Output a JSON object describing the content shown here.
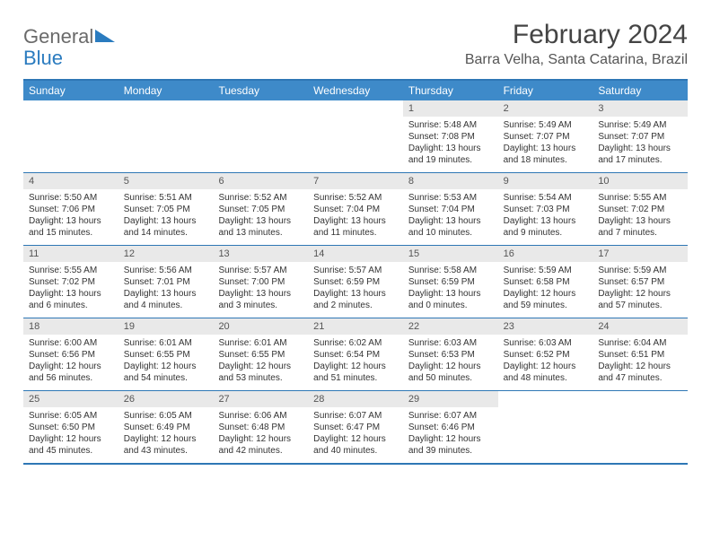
{
  "logo": {
    "text1": "General",
    "text2": "Blue"
  },
  "title": "February 2024",
  "location": "Barra Velha, Santa Catarina, Brazil",
  "colors": {
    "header_bg": "#3e8ac9",
    "header_text": "#ffffff",
    "rule": "#2e77b5",
    "daynum_bg": "#e9e9e9",
    "text": "#333333",
    "logo_gray": "#6a6a6a",
    "logo_blue": "#2a7bbf"
  },
  "day_names": [
    "Sunday",
    "Monday",
    "Tuesday",
    "Wednesday",
    "Thursday",
    "Friday",
    "Saturday"
  ],
  "weeks": [
    [
      {
        "n": "",
        "sr": "",
        "ss": "",
        "dl": ""
      },
      {
        "n": "",
        "sr": "",
        "ss": "",
        "dl": ""
      },
      {
        "n": "",
        "sr": "",
        "ss": "",
        "dl": ""
      },
      {
        "n": "",
        "sr": "",
        "ss": "",
        "dl": ""
      },
      {
        "n": "1",
        "sr": "Sunrise: 5:48 AM",
        "ss": "Sunset: 7:08 PM",
        "dl": "Daylight: 13 hours and 19 minutes."
      },
      {
        "n": "2",
        "sr": "Sunrise: 5:49 AM",
        "ss": "Sunset: 7:07 PM",
        "dl": "Daylight: 13 hours and 18 minutes."
      },
      {
        "n": "3",
        "sr": "Sunrise: 5:49 AM",
        "ss": "Sunset: 7:07 PM",
        "dl": "Daylight: 13 hours and 17 minutes."
      }
    ],
    [
      {
        "n": "4",
        "sr": "Sunrise: 5:50 AM",
        "ss": "Sunset: 7:06 PM",
        "dl": "Daylight: 13 hours and 15 minutes."
      },
      {
        "n": "5",
        "sr": "Sunrise: 5:51 AM",
        "ss": "Sunset: 7:05 PM",
        "dl": "Daylight: 13 hours and 14 minutes."
      },
      {
        "n": "6",
        "sr": "Sunrise: 5:52 AM",
        "ss": "Sunset: 7:05 PM",
        "dl": "Daylight: 13 hours and 13 minutes."
      },
      {
        "n": "7",
        "sr": "Sunrise: 5:52 AM",
        "ss": "Sunset: 7:04 PM",
        "dl": "Daylight: 13 hours and 11 minutes."
      },
      {
        "n": "8",
        "sr": "Sunrise: 5:53 AM",
        "ss": "Sunset: 7:04 PM",
        "dl": "Daylight: 13 hours and 10 minutes."
      },
      {
        "n": "9",
        "sr": "Sunrise: 5:54 AM",
        "ss": "Sunset: 7:03 PM",
        "dl": "Daylight: 13 hours and 9 minutes."
      },
      {
        "n": "10",
        "sr": "Sunrise: 5:55 AM",
        "ss": "Sunset: 7:02 PM",
        "dl": "Daylight: 13 hours and 7 minutes."
      }
    ],
    [
      {
        "n": "11",
        "sr": "Sunrise: 5:55 AM",
        "ss": "Sunset: 7:02 PM",
        "dl": "Daylight: 13 hours and 6 minutes."
      },
      {
        "n": "12",
        "sr": "Sunrise: 5:56 AM",
        "ss": "Sunset: 7:01 PM",
        "dl": "Daylight: 13 hours and 4 minutes."
      },
      {
        "n": "13",
        "sr": "Sunrise: 5:57 AM",
        "ss": "Sunset: 7:00 PM",
        "dl": "Daylight: 13 hours and 3 minutes."
      },
      {
        "n": "14",
        "sr": "Sunrise: 5:57 AM",
        "ss": "Sunset: 6:59 PM",
        "dl": "Daylight: 13 hours and 2 minutes."
      },
      {
        "n": "15",
        "sr": "Sunrise: 5:58 AM",
        "ss": "Sunset: 6:59 PM",
        "dl": "Daylight: 13 hours and 0 minutes."
      },
      {
        "n": "16",
        "sr": "Sunrise: 5:59 AM",
        "ss": "Sunset: 6:58 PM",
        "dl": "Daylight: 12 hours and 59 minutes."
      },
      {
        "n": "17",
        "sr": "Sunrise: 5:59 AM",
        "ss": "Sunset: 6:57 PM",
        "dl": "Daylight: 12 hours and 57 minutes."
      }
    ],
    [
      {
        "n": "18",
        "sr": "Sunrise: 6:00 AM",
        "ss": "Sunset: 6:56 PM",
        "dl": "Daylight: 12 hours and 56 minutes."
      },
      {
        "n": "19",
        "sr": "Sunrise: 6:01 AM",
        "ss": "Sunset: 6:55 PM",
        "dl": "Daylight: 12 hours and 54 minutes."
      },
      {
        "n": "20",
        "sr": "Sunrise: 6:01 AM",
        "ss": "Sunset: 6:55 PM",
        "dl": "Daylight: 12 hours and 53 minutes."
      },
      {
        "n": "21",
        "sr": "Sunrise: 6:02 AM",
        "ss": "Sunset: 6:54 PM",
        "dl": "Daylight: 12 hours and 51 minutes."
      },
      {
        "n": "22",
        "sr": "Sunrise: 6:03 AM",
        "ss": "Sunset: 6:53 PM",
        "dl": "Daylight: 12 hours and 50 minutes."
      },
      {
        "n": "23",
        "sr": "Sunrise: 6:03 AM",
        "ss": "Sunset: 6:52 PM",
        "dl": "Daylight: 12 hours and 48 minutes."
      },
      {
        "n": "24",
        "sr": "Sunrise: 6:04 AM",
        "ss": "Sunset: 6:51 PM",
        "dl": "Daylight: 12 hours and 47 minutes."
      }
    ],
    [
      {
        "n": "25",
        "sr": "Sunrise: 6:05 AM",
        "ss": "Sunset: 6:50 PM",
        "dl": "Daylight: 12 hours and 45 minutes."
      },
      {
        "n": "26",
        "sr": "Sunrise: 6:05 AM",
        "ss": "Sunset: 6:49 PM",
        "dl": "Daylight: 12 hours and 43 minutes."
      },
      {
        "n": "27",
        "sr": "Sunrise: 6:06 AM",
        "ss": "Sunset: 6:48 PM",
        "dl": "Daylight: 12 hours and 42 minutes."
      },
      {
        "n": "28",
        "sr": "Sunrise: 6:07 AM",
        "ss": "Sunset: 6:47 PM",
        "dl": "Daylight: 12 hours and 40 minutes."
      },
      {
        "n": "29",
        "sr": "Sunrise: 6:07 AM",
        "ss": "Sunset: 6:46 PM",
        "dl": "Daylight: 12 hours and 39 minutes."
      },
      {
        "n": "",
        "sr": "",
        "ss": "",
        "dl": ""
      },
      {
        "n": "",
        "sr": "",
        "ss": "",
        "dl": ""
      }
    ]
  ]
}
